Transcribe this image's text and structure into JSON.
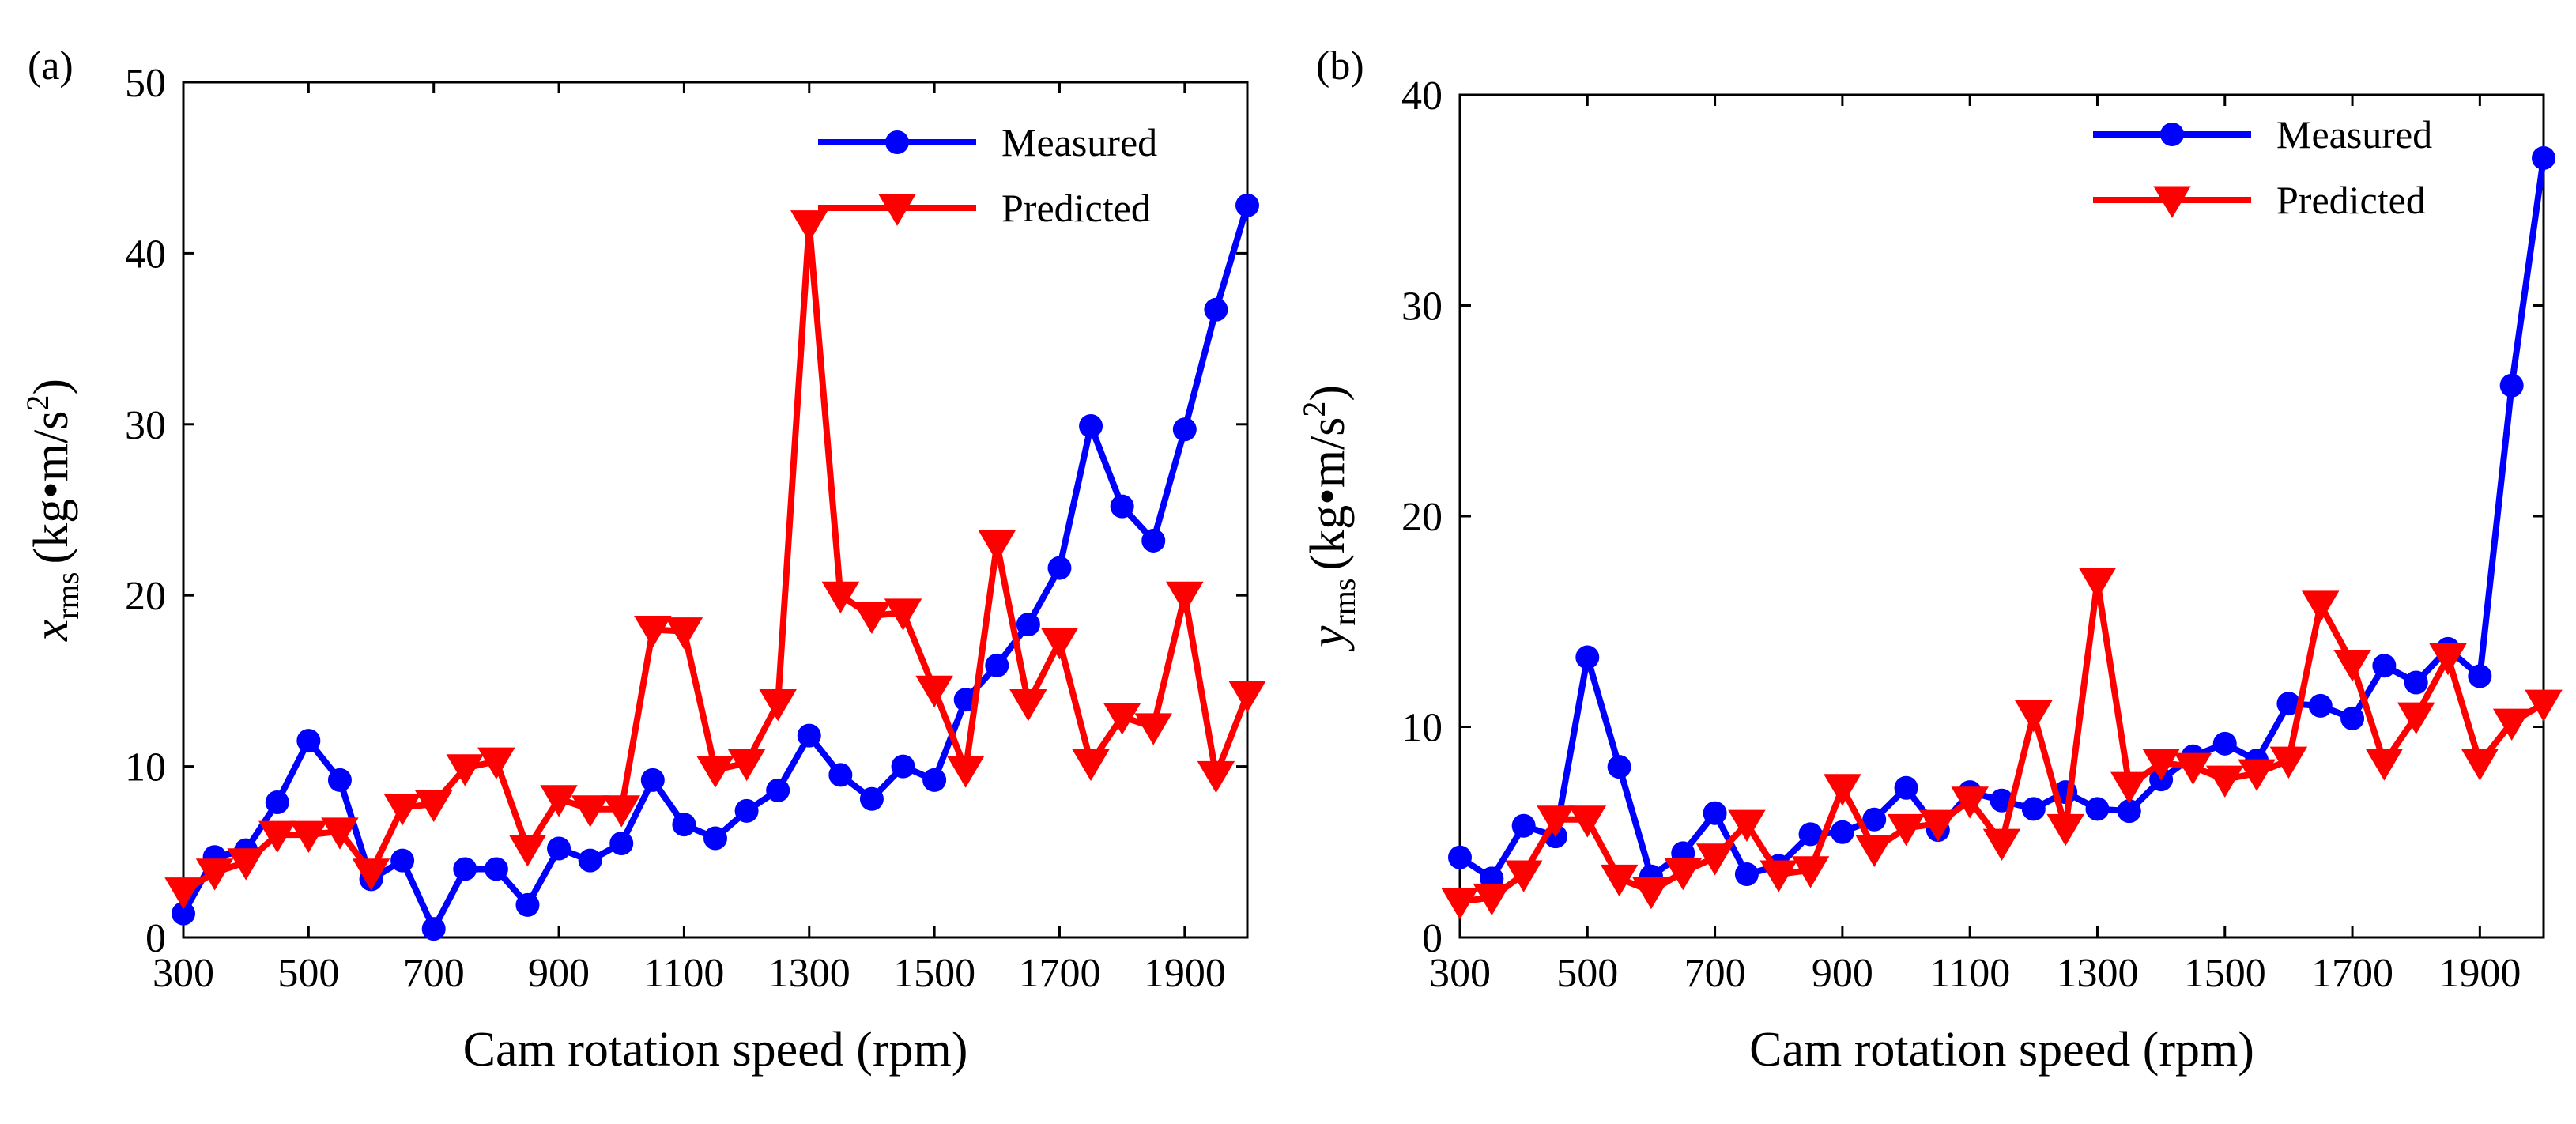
{
  "chart_data": [
    {
      "type": "line",
      "panel_label": "(a)",
      "xlabel": "Cam rotation speed (rpm)",
      "ylabel_base": "x",
      "ylabel_sub": "rms",
      "ylabel_unit_pre": "(kg•m/s",
      "ylabel_unit_sup": "2",
      "ylabel_unit_post": ")",
      "xlim": [
        300,
        2000
      ],
      "ylim": [
        0,
        50
      ],
      "xticks": [
        300,
        500,
        700,
        900,
        1100,
        1300,
        1500,
        1700,
        1900
      ],
      "yticks": [
        0,
        10,
        20,
        30,
        40,
        50
      ],
      "grid": false,
      "legend_position": "top-right",
      "x": [
        300,
        350,
        400,
        450,
        500,
        550,
        600,
        650,
        700,
        750,
        800,
        850,
        900,
        950,
        1000,
        1050,
        1100,
        1150,
        1200,
        1250,
        1300,
        1350,
        1400,
        1450,
        1500,
        1550,
        1600,
        1650,
        1700,
        1750,
        1800,
        1850,
        1900,
        1950,
        2000
      ],
      "series": [
        {
          "name": "Measured",
          "color": "#0000ff",
          "marker": "circle",
          "values": [
            1.4,
            4.7,
            5.1,
            7.9,
            11.5,
            9.2,
            3.4,
            4.5,
            0.5,
            4.0,
            4.0,
            1.9,
            5.2,
            4.5,
            5.5,
            9.2,
            6.6,
            5.8,
            7.4,
            8.6,
            11.8,
            9.5,
            8.1,
            10.0,
            9.2,
            13.9,
            15.9,
            18.3,
            21.6,
            29.9,
            25.2,
            23.2,
            29.7,
            36.7,
            42.8
          ]
        },
        {
          "name": "Predicted",
          "color": "#ff0000",
          "marker": "triangle-down",
          "values": [
            2.7,
            3.8,
            4.4,
            6.0,
            6.0,
            6.2,
            3.8,
            7.6,
            7.8,
            9.9,
            10.3,
            5.2,
            8.1,
            7.5,
            7.5,
            18.0,
            17.9,
            9.8,
            10.2,
            13.7,
            41.7,
            20.0,
            18.8,
            19.0,
            14.5,
            9.8,
            23.0,
            13.7,
            17.3,
            10.2,
            12.9,
            12.3,
            20.0,
            9.5,
            14.2
          ]
        }
      ]
    },
    {
      "type": "line",
      "panel_label": "(b)",
      "xlabel": "Cam rotation speed (rpm)",
      "ylabel_base": "y",
      "ylabel_sub": "rms",
      "ylabel_unit_pre": "(kg•m/s",
      "ylabel_unit_sup": "2",
      "ylabel_unit_post": ")",
      "xlim": [
        300,
        2000
      ],
      "ylim": [
        0,
        40
      ],
      "xticks": [
        300,
        500,
        700,
        900,
        1100,
        1300,
        1500,
        1700,
        1900
      ],
      "yticks": [
        0,
        10,
        20,
        30,
        40
      ],
      "grid": false,
      "legend_position": "top-right",
      "x": [
        300,
        350,
        400,
        450,
        500,
        550,
        600,
        650,
        700,
        750,
        800,
        850,
        900,
        950,
        1000,
        1050,
        1100,
        1150,
        1200,
        1250,
        1300,
        1350,
        1400,
        1450,
        1500,
        1550,
        1600,
        1650,
        1700,
        1750,
        1800,
        1850,
        1900,
        1950,
        2000
      ],
      "series": [
        {
          "name": "Measured",
          "color": "#0000ff",
          "marker": "circle",
          "values": [
            3.8,
            2.8,
            5.3,
            4.8,
            13.3,
            8.1,
            2.9,
            4.0,
            5.9,
            3.0,
            3.4,
            4.9,
            5.0,
            5.6,
            7.1,
            5.1,
            6.9,
            6.5,
            6.1,
            6.9,
            6.1,
            6.0,
            7.5,
            8.6,
            9.2,
            8.4,
            11.1,
            11.0,
            10.4,
            12.9,
            12.1,
            13.7,
            12.4,
            26.2,
            37.0
          ]
        },
        {
          "name": "Predicted",
          "color": "#ff0000",
          "marker": "triangle-down",
          "values": [
            1.7,
            1.9,
            3.0,
            5.6,
            5.6,
            2.8,
            2.2,
            3.1,
            3.8,
            5.4,
            3.0,
            3.2,
            7.1,
            4.2,
            5.2,
            5.4,
            6.5,
            4.5,
            10.6,
            5.2,
            16.9,
            7.2,
            8.3,
            8.1,
            7.5,
            7.8,
            8.4,
            15.8,
            13.0,
            8.3,
            10.5,
            13.3,
            8.3,
            10.2,
            11.1
          ]
        }
      ]
    }
  ]
}
